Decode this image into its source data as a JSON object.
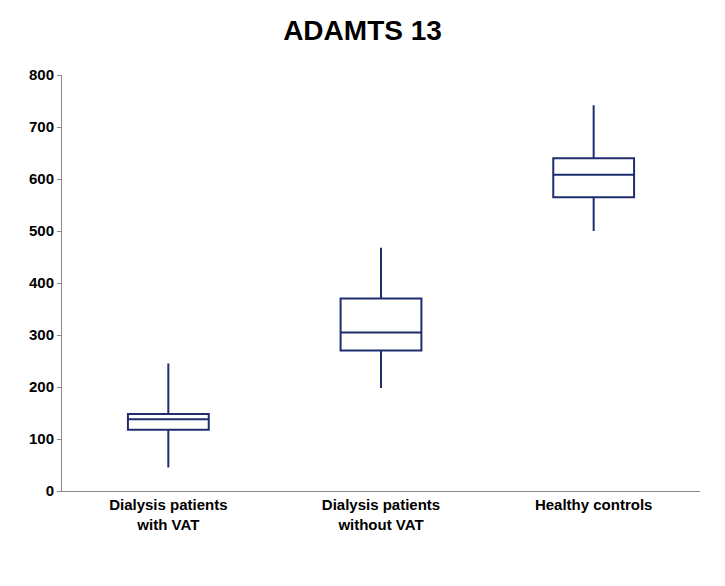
{
  "chart_data": {
    "type": "box",
    "title": "ADAMTS 13",
    "categories": [
      "Dialysis patients with VAT",
      "Dialysis patients without VAT",
      "Healthy controls"
    ],
    "min": [
      45,
      198,
      500
    ],
    "q1": [
      118,
      270,
      565
    ],
    "median": [
      138,
      305,
      608
    ],
    "q3": [
      148,
      370,
      640
    ],
    "max": [
      245,
      468,
      742
    ],
    "color": "#1f2d6e",
    "ylim": [
      0,
      800
    ],
    "yticks": [
      0,
      100,
      200,
      300,
      400,
      500,
      600,
      700,
      800
    ],
    "grid": false
  }
}
